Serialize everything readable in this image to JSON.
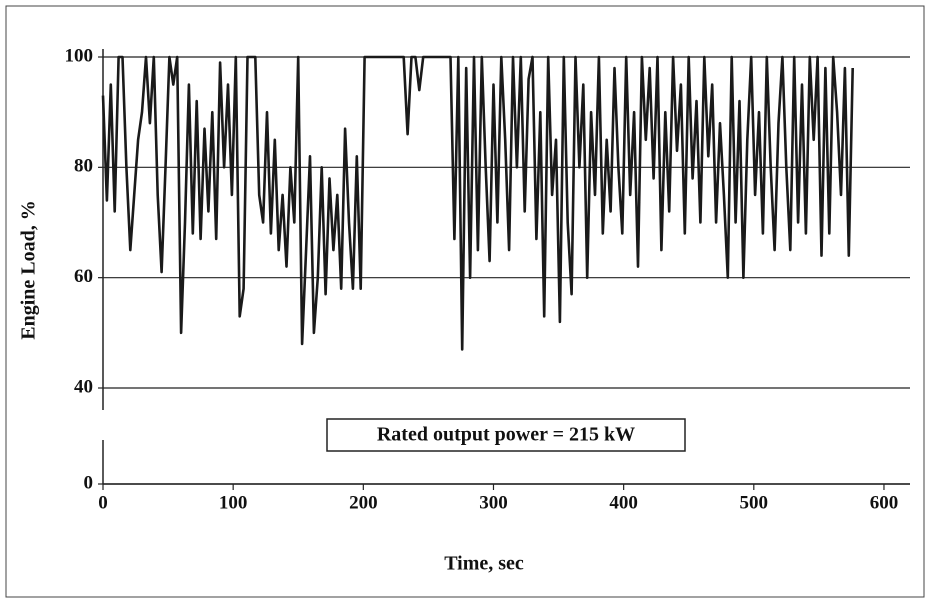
{
  "chart_data": {
    "type": "line",
    "x_label": "Time,  sec",
    "y_label": "Engine Load,  %",
    "annotation": "Rated output power = 215 kW",
    "xlim": [
      0,
      620
    ],
    "xticks": [
      0,
      100,
      200,
      300,
      400,
      500,
      600
    ],
    "ylim": [
      0,
      100
    ],
    "yticks": [
      0,
      40,
      60,
      80,
      100
    ],
    "y_axis_break": true,
    "grid": true,
    "color": "#1a1a1a",
    "x": [
      0,
      3,
      6,
      9,
      12,
      15,
      18,
      21,
      24,
      27,
      30,
      33,
      36,
      39,
      42,
      45,
      48,
      51,
      54,
      57,
      60,
      63,
      66,
      69,
      72,
      75,
      78,
      81,
      84,
      87,
      90,
      93,
      96,
      99,
      102,
      105,
      108,
      111,
      114,
      117,
      120,
      123,
      126,
      129,
      132,
      135,
      138,
      141,
      144,
      147,
      150,
      153,
      156,
      159,
      162,
      165,
      168,
      171,
      174,
      177,
      180,
      183,
      186,
      189,
      192,
      195,
      198,
      201,
      204,
      207,
      210,
      213,
      216,
      219,
      222,
      225,
      228,
      231,
      234,
      237,
      240,
      243,
      246,
      249,
      252,
      255,
      258,
      261,
      264,
      267,
      270,
      273,
      276,
      279,
      282,
      285,
      288,
      291,
      294,
      297,
      300,
      303,
      306,
      309,
      312,
      315,
      318,
      321,
      324,
      327,
      330,
      333,
      336,
      339,
      342,
      345,
      348,
      351,
      354,
      357,
      360,
      363,
      366,
      369,
      372,
      375,
      378,
      381,
      384,
      387,
      390,
      393,
      396,
      399,
      402,
      405,
      408,
      411,
      414,
      417,
      420,
      423,
      426,
      429,
      432,
      435,
      438,
      441,
      444,
      447,
      450,
      453,
      456,
      459,
      462,
      465,
      468,
      471,
      474,
      477,
      480,
      483,
      486,
      489,
      492,
      495,
      498,
      501,
      504,
      507,
      510,
      513,
      516,
      519,
      522,
      525,
      528,
      531,
      534,
      537,
      540,
      543,
      546,
      549,
      552,
      555,
      558,
      561,
      564,
      567,
      570,
      573,
      576
    ],
    "values": [
      93,
      74,
      95,
      72,
      100,
      100,
      80,
      65,
      75,
      85,
      90,
      100,
      88,
      100,
      75,
      61,
      80,
      100,
      95,
      100,
      50,
      70,
      95,
      68,
      92,
      67,
      87,
      72,
      90,
      67,
      99,
      80,
      95,
      75,
      100,
      53,
      58,
      100,
      100,
      100,
      75,
      70,
      90,
      68,
      85,
      65,
      75,
      62,
      80,
      70,
      100,
      48,
      65,
      82,
      50,
      60,
      80,
      57,
      78,
      65,
      75,
      58,
      87,
      70,
      58,
      82,
      58,
      100,
      100,
      100,
      100,
      100,
      100,
      100,
      100,
      100,
      100,
      100,
      86,
      100,
      100,
      94,
      100,
      100,
      100,
      100,
      100,
      100,
      100,
      100,
      67,
      100,
      47,
      98,
      60,
      100,
      65,
      100,
      80,
      63,
      95,
      70,
      100,
      85,
      65,
      100,
      80,
      100,
      72,
      96,
      100,
      67,
      90,
      53,
      100,
      75,
      85,
      52,
      100,
      70,
      57,
      100,
      80,
      95,
      60,
      90,
      75,
      100,
      68,
      85,
      72,
      98,
      80,
      68,
      100,
      75,
      90,
      62,
      100,
      85,
      98,
      78,
      100,
      65,
      90,
      72,
      100,
      83,
      95,
      68,
      100,
      78,
      92,
      70,
      100,
      82,
      95,
      70,
      88,
      75,
      60,
      100,
      70,
      92,
      60,
      85,
      100,
      75,
      90,
      68,
      100,
      80,
      65,
      88,
      100,
      80,
      65,
      100,
      70,
      95,
      68,
      100,
      85,
      100,
      64,
      98,
      68,
      100,
      90,
      75,
      98,
      64,
      98
    ]
  }
}
